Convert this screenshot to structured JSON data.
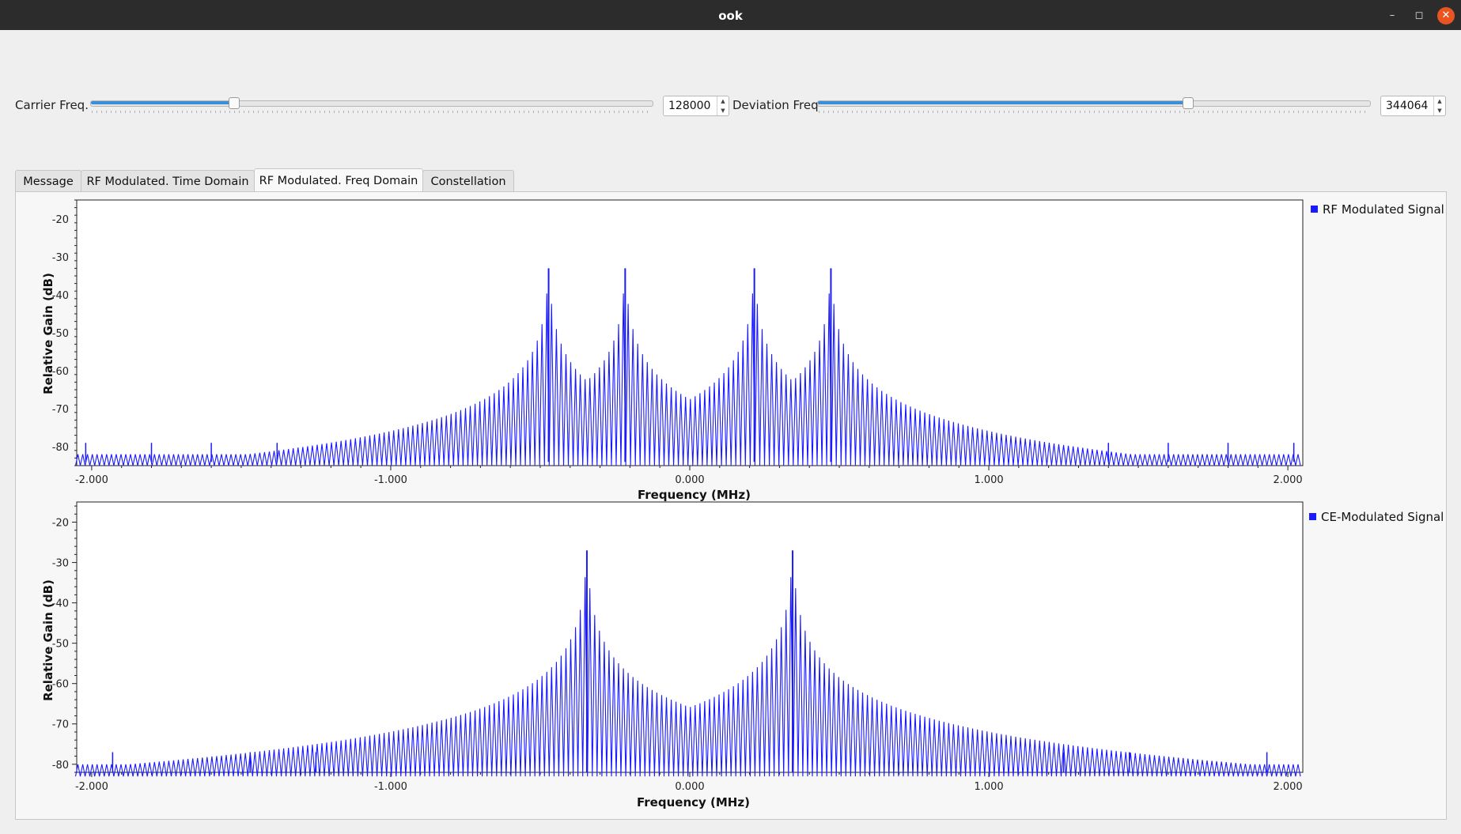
{
  "window": {
    "title": "ook"
  },
  "controls": {
    "carrier": {
      "label": "Carrier Freq.",
      "value": "128000",
      "slider_fraction": 0.255
    },
    "deviation": {
      "label": "Deviation Freq",
      "value": "344064",
      "slider_fraction": 0.67
    }
  },
  "tabs": [
    {
      "label": "Message",
      "active": false
    },
    {
      "label": "RF Modulated. Time Domain",
      "active": false
    },
    {
      "label": "RF Modulated. Freq Domain",
      "active": true
    },
    {
      "label": "Constellation",
      "active": false
    }
  ],
  "colors": {
    "trace": "#1a1aff",
    "accent": "#3b8fd8",
    "close_button": "#e95420"
  },
  "chart_data": [
    {
      "type": "line",
      "xlabel": "Frequency (MHz)",
      "ylabel": "Relative Gain (dB)",
      "xlim": [
        -2.05,
        2.05
      ],
      "ylim": [
        -85,
        -15
      ],
      "x_ticks": [
        "-2.000",
        "-1.000",
        "0.000",
        "1.000",
        "2.000"
      ],
      "y_ticks": [
        "-20",
        "-30",
        "-40",
        "-50",
        "-60",
        "-70",
        "-80"
      ],
      "legend": "top-right",
      "series": [
        {
          "name": "RF Modulated Signal",
          "peaks_mhz": [
            -0.472,
            -0.216,
            0.216,
            0.472
          ],
          "peak_db": -33,
          "noise_floor_db": -84,
          "between_peaks_db": -58,
          "spur_marks_mhz": [
            -2.02,
            -1.8,
            -1.6,
            -1.38,
            1.4,
            1.6,
            1.8,
            2.02
          ]
        }
      ]
    },
    {
      "type": "line",
      "xlabel": "Frequency (MHz)",
      "ylabel": "Relative Gain (dB)",
      "xlim": [
        -2.05,
        2.05
      ],
      "ylim": [
        -82,
        -15
      ],
      "x_ticks": [
        "-2.000",
        "-1.000",
        "0.000",
        "1.000",
        "2.000"
      ],
      "y_ticks": [
        "-20",
        "-30",
        "-40",
        "-50",
        "-60",
        "-70",
        "-80"
      ],
      "legend": "top-right",
      "series": [
        {
          "name": "CE-Modulated Signal",
          "peaks_mhz": [
            -0.344,
            0.344
          ],
          "peak_db": -27,
          "noise_floor_db": -82,
          "between_peaks_db": -57,
          "spur_marks_mhz": [
            -1.93,
            -1.47,
            -1.25,
            1.25,
            1.47,
            1.93
          ]
        }
      ]
    }
  ]
}
